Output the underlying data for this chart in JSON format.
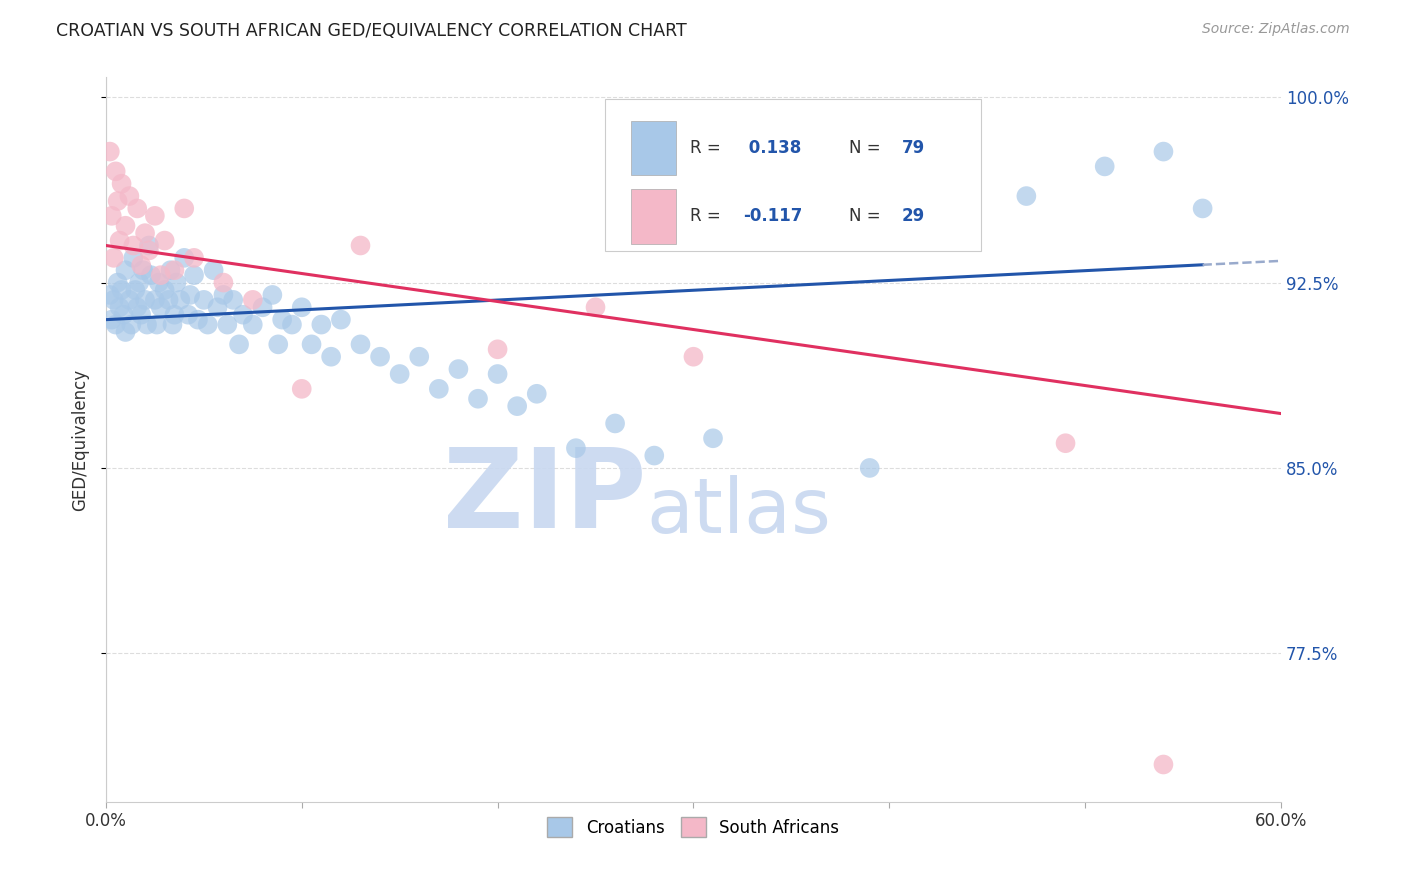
{
  "title": "CROATIAN VS SOUTH AFRICAN GED/EQUIVALENCY CORRELATION CHART",
  "source": "Source: ZipAtlas.com",
  "ylabel": "GED/Equivalency",
  "xlim": [
    0.0,
    0.6
  ],
  "ylim": [
    0.715,
    1.008
  ],
  "xtick_vals": [
    0.0,
    0.1,
    0.2,
    0.3,
    0.4,
    0.5,
    0.6
  ],
  "xtick_labels": [
    "0.0%",
    "",
    "",
    "",
    "",
    "",
    "60.0%"
  ],
  "ytick_vals": [
    0.775,
    0.85,
    0.925,
    1.0
  ],
  "ytick_labels": [
    "77.5%",
    "85.0%",
    "92.5%",
    "100.0%"
  ],
  "color_croatian": "#a8c8e8",
  "color_sa": "#f4b8c8",
  "color_trend_croatian": "#2255aa",
  "color_trend_sa": "#e03060",
  "color_trend_dashed": "#99aacc",
  "watermark_zip": "ZIP",
  "watermark_atlas": "atlas",
  "watermark_color": "#c8d8f0",
  "croatian_x": [
    0.002,
    0.003,
    0.004,
    0.005,
    0.006,
    0.007,
    0.008,
    0.009,
    0.01,
    0.01,
    0.012,
    0.013,
    0.014,
    0.015,
    0.016,
    0.017,
    0.018,
    0.019,
    0.02,
    0.021,
    0.022,
    0.023,
    0.025,
    0.026,
    0.027,
    0.028,
    0.03,
    0.032,
    0.033,
    0.034,
    0.035,
    0.036,
    0.038,
    0.04,
    0.042,
    0.043,
    0.045,
    0.047,
    0.05,
    0.052,
    0.055,
    0.057,
    0.06,
    0.062,
    0.065,
    0.068,
    0.07,
    0.075,
    0.08,
    0.085,
    0.088,
    0.09,
    0.095,
    0.1,
    0.105,
    0.11,
    0.115,
    0.12,
    0.13,
    0.14,
    0.15,
    0.16,
    0.17,
    0.18,
    0.19,
    0.2,
    0.21,
    0.22,
    0.24,
    0.26,
    0.28,
    0.31,
    0.35,
    0.39,
    0.43,
    0.47,
    0.51,
    0.54,
    0.56
  ],
  "croatian_y": [
    0.92,
    0.91,
    0.918,
    0.908,
    0.925,
    0.915,
    0.922,
    0.912,
    0.93,
    0.905,
    0.918,
    0.908,
    0.935,
    0.922,
    0.915,
    0.925,
    0.912,
    0.93,
    0.918,
    0.908,
    0.94,
    0.928,
    0.918,
    0.908,
    0.925,
    0.915,
    0.922,
    0.918,
    0.93,
    0.908,
    0.912,
    0.925,
    0.918,
    0.935,
    0.912,
    0.92,
    0.928,
    0.91,
    0.918,
    0.908,
    0.93,
    0.915,
    0.92,
    0.908,
    0.918,
    0.9,
    0.912,
    0.908,
    0.915,
    0.92,
    0.9,
    0.91,
    0.908,
    0.915,
    0.9,
    0.908,
    0.895,
    0.91,
    0.9,
    0.895,
    0.888,
    0.895,
    0.882,
    0.89,
    0.878,
    0.888,
    0.875,
    0.88,
    0.858,
    0.868,
    0.855,
    0.862,
    0.958,
    0.85,
    0.968,
    0.96,
    0.972,
    0.978,
    0.955
  ],
  "sa_x": [
    0.002,
    0.003,
    0.004,
    0.005,
    0.006,
    0.007,
    0.008,
    0.01,
    0.012,
    0.014,
    0.016,
    0.018,
    0.02,
    0.022,
    0.025,
    0.028,
    0.03,
    0.035,
    0.04,
    0.045,
    0.06,
    0.075,
    0.1,
    0.13,
    0.2,
    0.25,
    0.3,
    0.49,
    0.54
  ],
  "sa_y": [
    0.978,
    0.952,
    0.935,
    0.97,
    0.958,
    0.942,
    0.965,
    0.948,
    0.96,
    0.94,
    0.955,
    0.932,
    0.945,
    0.938,
    0.952,
    0.928,
    0.942,
    0.93,
    0.955,
    0.935,
    0.925,
    0.918,
    0.882,
    0.94,
    0.898,
    0.915,
    0.895,
    0.86,
    0.73
  ],
  "trend_c_x0": 0.0,
  "trend_c_y0": 0.91,
  "trend_c_x1": 0.555,
  "trend_c_y1": 0.932,
  "trend_c_solid_end": 0.56,
  "trend_s_x0": 0.0,
  "trend_s_y0": 0.94,
  "trend_s_x1": 0.6,
  "trend_s_y1": 0.872
}
